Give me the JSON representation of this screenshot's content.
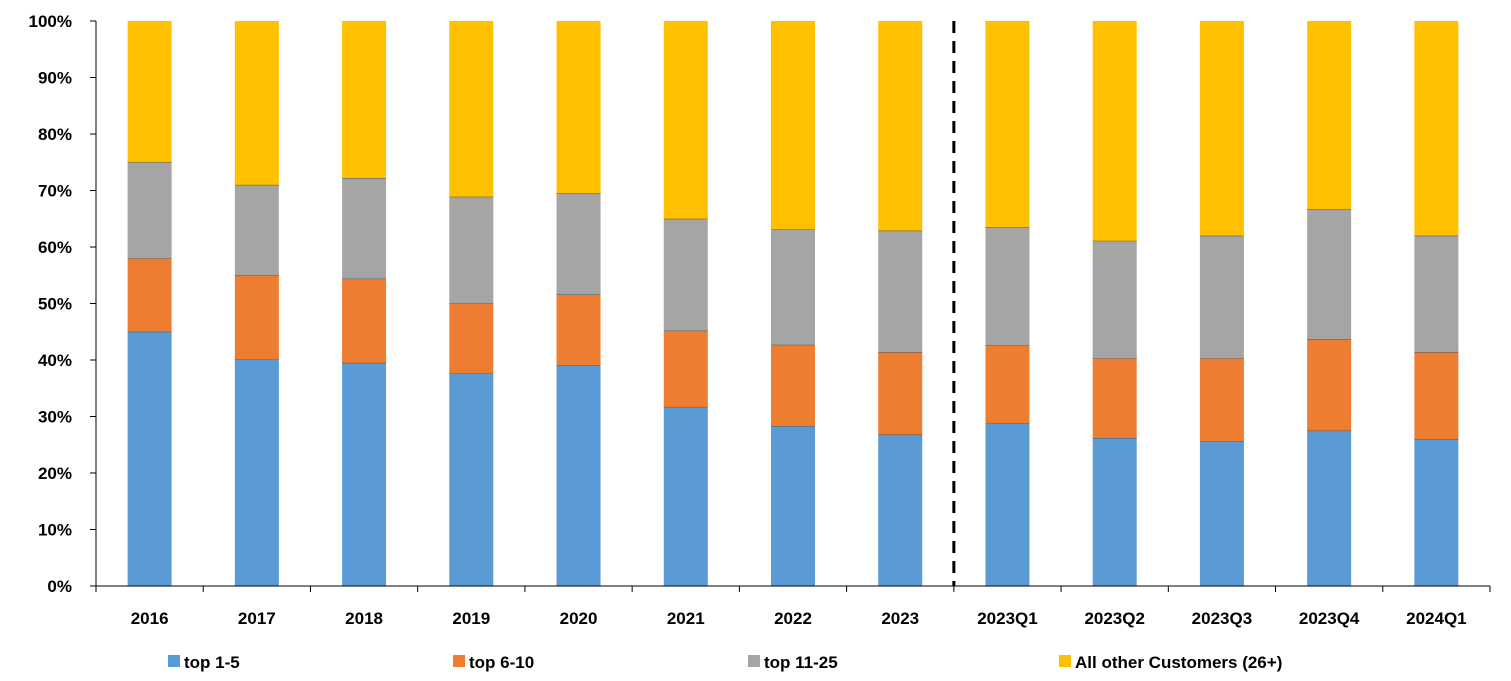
{
  "chart_data": {
    "type": "bar",
    "stacked": true,
    "categories": [
      "2016",
      "2017",
      "2018",
      "2019",
      "2020",
      "2021",
      "2022",
      "2023",
      "2023Q1",
      "2023Q2",
      "2023Q3",
      "2023Q4",
      "2024Q1"
    ],
    "series": [
      {
        "name": "top 1-5",
        "color": "#5B9BD5",
        "values": [
          45.0,
          40.1,
          39.5,
          37.6,
          39.1,
          31.7,
          28.3,
          26.8,
          28.8,
          26.2,
          25.6,
          27.5,
          26.0
        ]
      },
      {
        "name": "top 6-10",
        "color": "#ED7D31",
        "values": [
          13.0,
          14.9,
          14.9,
          12.4,
          12.5,
          13.5,
          14.4,
          14.6,
          13.8,
          14.1,
          14.7,
          16.2,
          15.4
        ]
      },
      {
        "name": "top 11-25",
        "color": "#A5A5A5",
        "values": [
          17.0,
          16.0,
          17.8,
          18.9,
          17.9,
          19.8,
          20.4,
          21.5,
          20.9,
          20.8,
          21.7,
          23.0,
          20.6
        ]
      },
      {
        "name": "All other Customers (26+)",
        "color": "#FFC000",
        "values": [
          25.0,
          29.0,
          27.8,
          31.1,
          30.5,
          35.0,
          36.9,
          37.1,
          36.5,
          38.9,
          38.0,
          33.3,
          38.0
        ]
      }
    ],
    "ylim": [
      0,
      100
    ],
    "yticks": [
      "0%",
      "10%",
      "20%",
      "30%",
      "40%",
      "50%",
      "60%",
      "70%",
      "80%",
      "90%",
      "100%"
    ],
    "grid": false,
    "legend_position": "bottom",
    "separator_after": "2023",
    "title": "",
    "xlabel": "",
    "ylabel": ""
  }
}
